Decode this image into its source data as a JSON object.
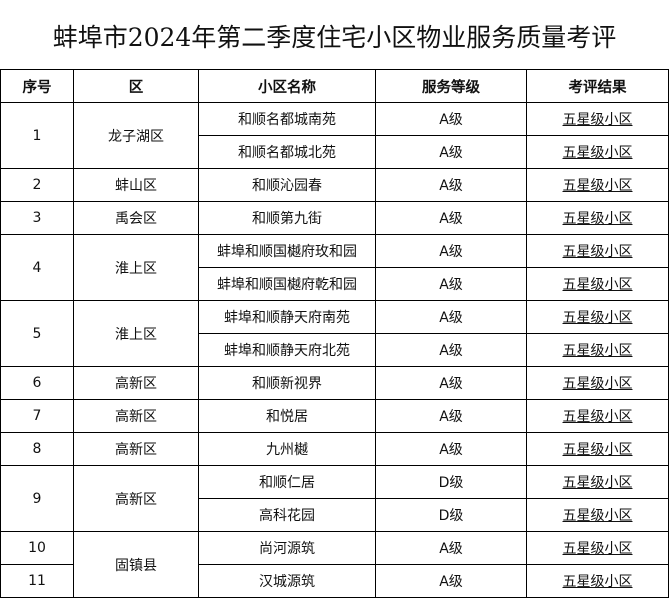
{
  "title": "蚌埠市2024年第二季度住宅小区物业服务质量考评",
  "table": {
    "headers": [
      "序号",
      "区",
      "小区名称",
      "服务等级",
      "考评结果"
    ],
    "groups": [
      {
        "no": "1",
        "district": "龙子湖区",
        "items": [
          {
            "name": "和顺名都城南苑",
            "level": "A级",
            "result": "五星级小区"
          },
          {
            "name": "和顺名都城北苑",
            "level": "A级",
            "result": "五星级小区"
          }
        ]
      },
      {
        "no": "2",
        "district": "蚌山区",
        "items": [
          {
            "name": "和顺沁园春",
            "level": "A级",
            "result": "五星级小区"
          }
        ]
      },
      {
        "no": "3",
        "district": "禹会区",
        "items": [
          {
            "name": "和顺第九街",
            "level": "A级",
            "result": "五星级小区"
          }
        ]
      },
      {
        "no": "4",
        "district": "淮上区",
        "items": [
          {
            "name": "蚌埠和顺国樾府玫和园",
            "level": "A级",
            "result": "五星级小区"
          },
          {
            "name": "蚌埠和顺国樾府乾和园",
            "level": "A级",
            "result": "五星级小区"
          }
        ]
      },
      {
        "no": "5",
        "district": "淮上区",
        "items": [
          {
            "name": "蚌埠和顺静天府南苑",
            "level": "A级",
            "result": "五星级小区"
          },
          {
            "name": "蚌埠和顺静天府北苑",
            "level": "A级",
            "result": "五星级小区"
          }
        ]
      },
      {
        "no": "6",
        "district": "高新区",
        "items": [
          {
            "name": "和顺新视界",
            "level": "A级",
            "result": "五星级小区"
          }
        ]
      },
      {
        "no": "7",
        "district": "高新区",
        "items": [
          {
            "name": "和悦居",
            "level": "A级",
            "result": "五星级小区"
          }
        ]
      },
      {
        "no": "8",
        "district": "高新区",
        "items": [
          {
            "name": "九州樾",
            "level": "A级",
            "result": "五星级小区"
          }
        ]
      },
      {
        "no": "9",
        "district": "高新区",
        "items": [
          {
            "name": "和顺仁居",
            "level": "D级",
            "result": "五星级小区"
          },
          {
            "name": "高科花园",
            "level": "D级",
            "result": "五星级小区"
          }
        ]
      }
    ],
    "gujen": {
      "district": "固镇县",
      "rows": [
        {
          "no": "10",
          "name": "尚河源筑",
          "level": "A级",
          "result": "五星级小区"
        },
        {
          "no": "11",
          "name": "汉城源筑",
          "level": "A级",
          "result": "五星级小区"
        }
      ]
    }
  }
}
